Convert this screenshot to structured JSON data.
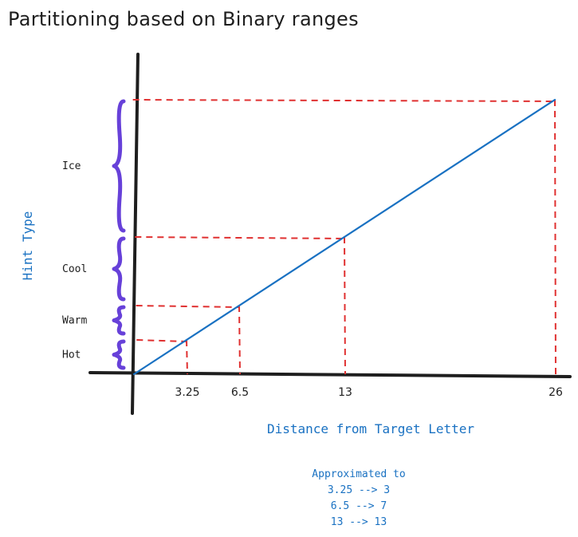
{
  "title": "Partitioning based on Binary ranges",
  "x_axis_label": "Distance from Target Letter",
  "y_axis_label": "Hint Type",
  "bands": [
    {
      "label": "Hot"
    },
    {
      "label": "Warm"
    },
    {
      "label": "Cool"
    },
    {
      "label": "Ice"
    }
  ],
  "chart_data": {
    "type": "line",
    "x": [
      0,
      26
    ],
    "series": [
      {
        "values": [
          0,
          26
        ]
      }
    ],
    "thresholds": [
      3.25,
      6.5,
      13,
      26
    ],
    "x_tick_labels": [
      "3.25",
      "6.5",
      "13",
      "26"
    ],
    "xlabel": "Distance from Target Letter",
    "ylabel": "Hint Type",
    "xlim": [
      0,
      26
    ],
    "ylim": [
      0,
      26
    ]
  },
  "note": {
    "heading": "Approximated to",
    "lines": [
      "3.25 --> 3",
      "6.5 --> 7",
      "13 --> 13"
    ]
  },
  "colors": {
    "line": "#1971c2",
    "guide": "#e03131",
    "brace": "#6741d9",
    "axis": "#1e1e1e"
  }
}
